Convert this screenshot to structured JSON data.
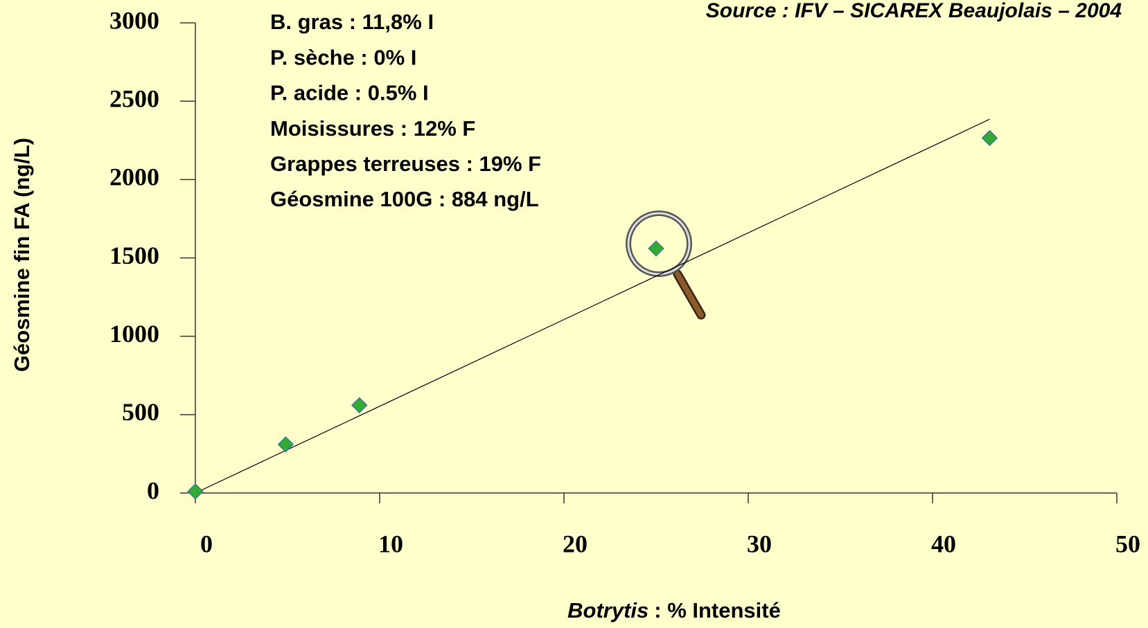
{
  "chart_data": {
    "type": "scatter",
    "source": "Source : IFV – SICAREX Beaujolais – 2004",
    "annotations": [
      "B. gras : 11,8% I",
      "P. sèche : 0% I",
      "P. acide : 0.5% I",
      "Moisissures : 12% F",
      "Grappes terreuses : 19% F",
      "Géosmine 100G : 884 ng/L"
    ],
    "xlabel": {
      "italic": "Botrytis",
      "text": ": % Intensité"
    },
    "ylabel": "Géosmine fin FA (ng/L)",
    "x": [
      0,
      4.9,
      8.9,
      25,
      43.1
    ],
    "values": [
      10,
      310,
      560,
      1560,
      2265
    ],
    "color": "#33aa33",
    "trendline": {
      "x": [
        0,
        43.1
      ],
      "values": [
        0,
        2385
      ]
    },
    "xlim": [
      0,
      50
    ],
    "xticks": [
      0,
      10,
      20,
      30,
      40,
      50
    ],
    "ylim": [
      0,
      3000
    ],
    "yticks": [
      0,
      500,
      1000,
      1500,
      2000,
      2500,
      3000
    ]
  }
}
